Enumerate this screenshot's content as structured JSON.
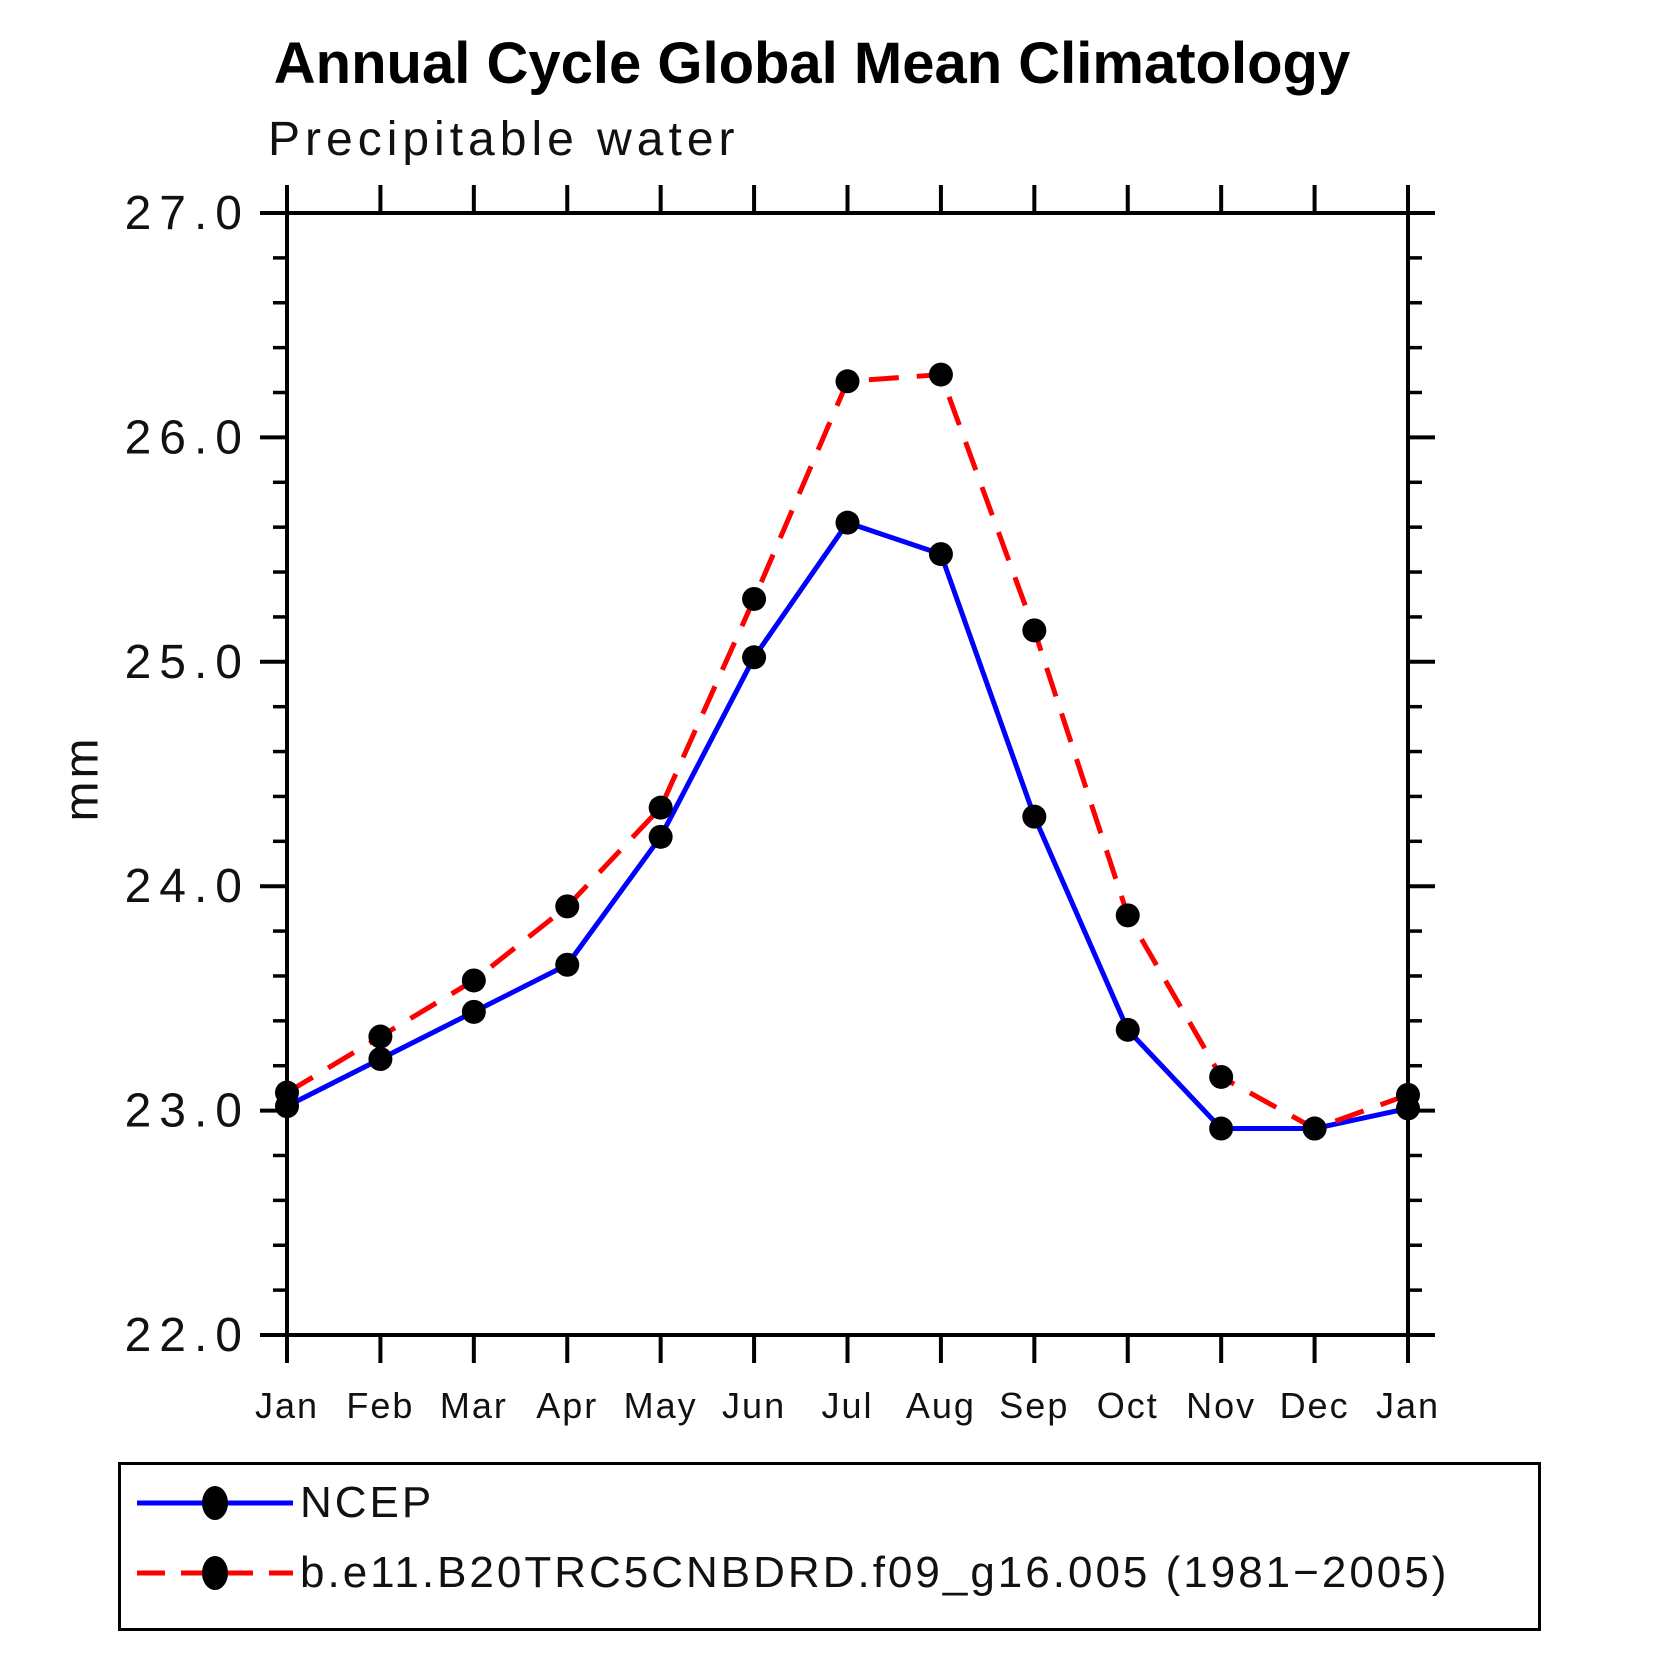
{
  "figure": {
    "background": "#ffffff",
    "text_color": "#000000"
  },
  "chart_data": {
    "type": "line",
    "title": "Annual Cycle Global Mean Climatology",
    "subtitle": "Precipitable water",
    "ylabel": "mm",
    "xlabel": "",
    "ylim": [
      22.0,
      27.0
    ],
    "y_major_tick_step": 1.0,
    "y_minor_tick_step": 0.2,
    "y_tick_labels": [
      "22.0",
      "23.0",
      "24.0",
      "25.0",
      "26.0",
      "27.0"
    ],
    "categories": [
      "Jan",
      "Feb",
      "Mar",
      "Apr",
      "May",
      "Jun",
      "Jul",
      "Aug",
      "Sep",
      "Oct",
      "Nov",
      "Dec",
      "Jan"
    ],
    "grid": false,
    "legend_position": "bottom",
    "marker": {
      "shape": "circle",
      "color": "#000000"
    },
    "series": [
      {
        "name": "NCEP",
        "color": "#0000ff",
        "line_style": "solid",
        "values": [
          23.02,
          23.23,
          23.44,
          23.65,
          24.22,
          25.02,
          25.62,
          25.48,
          24.31,
          23.36,
          22.92,
          22.92,
          23.01
        ]
      },
      {
        "name": "b.e11.B20TRC5CNBDRD.f09_g16.005 (1981−2005)",
        "color": "#ff0000",
        "line_style": "dashed",
        "values": [
          23.08,
          23.33,
          23.58,
          23.91,
          24.35,
          25.28,
          26.25,
          26.28,
          25.14,
          23.87,
          23.15,
          22.92,
          23.07
        ]
      }
    ]
  }
}
